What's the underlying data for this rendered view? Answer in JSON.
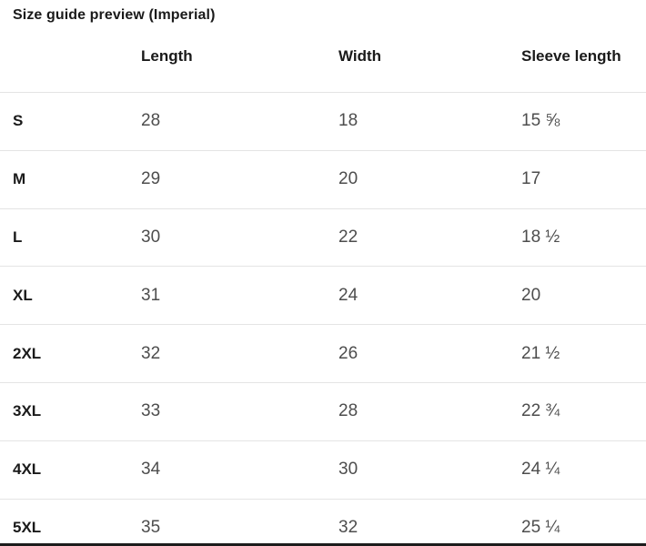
{
  "page": {
    "title": "Size guide preview (Imperial)"
  },
  "colors": {
    "heading_text": "#1a1a1a",
    "value_text": "#4d4d4d",
    "row_divider": "#e4e4e4",
    "bottom_bar": "#1c1c1c",
    "background": "#ffffff"
  },
  "table": {
    "columns": {
      "length": "Length",
      "width": "Width",
      "sleeve_length": "Sleeve length"
    },
    "rows": [
      {
        "size": "S",
        "length": "28",
        "width": "18",
        "sleeve_length": "15 ⅝"
      },
      {
        "size": "M",
        "length": "29",
        "width": "20",
        "sleeve_length": "17"
      },
      {
        "size": "L",
        "length": "30",
        "width": "22",
        "sleeve_length": "18 ½"
      },
      {
        "size": "XL",
        "length": "31",
        "width": "24",
        "sleeve_length": "20"
      },
      {
        "size": "2XL",
        "length": "32",
        "width": "26",
        "sleeve_length": "21 ½"
      },
      {
        "size": "3XL",
        "length": "33",
        "width": "28",
        "sleeve_length": "22 ¾"
      },
      {
        "size": "4XL",
        "length": "34",
        "width": "30",
        "sleeve_length": "24 ¼"
      },
      {
        "size": "5XL",
        "length": "35",
        "width": "32",
        "sleeve_length": "25 ¼"
      }
    ]
  }
}
